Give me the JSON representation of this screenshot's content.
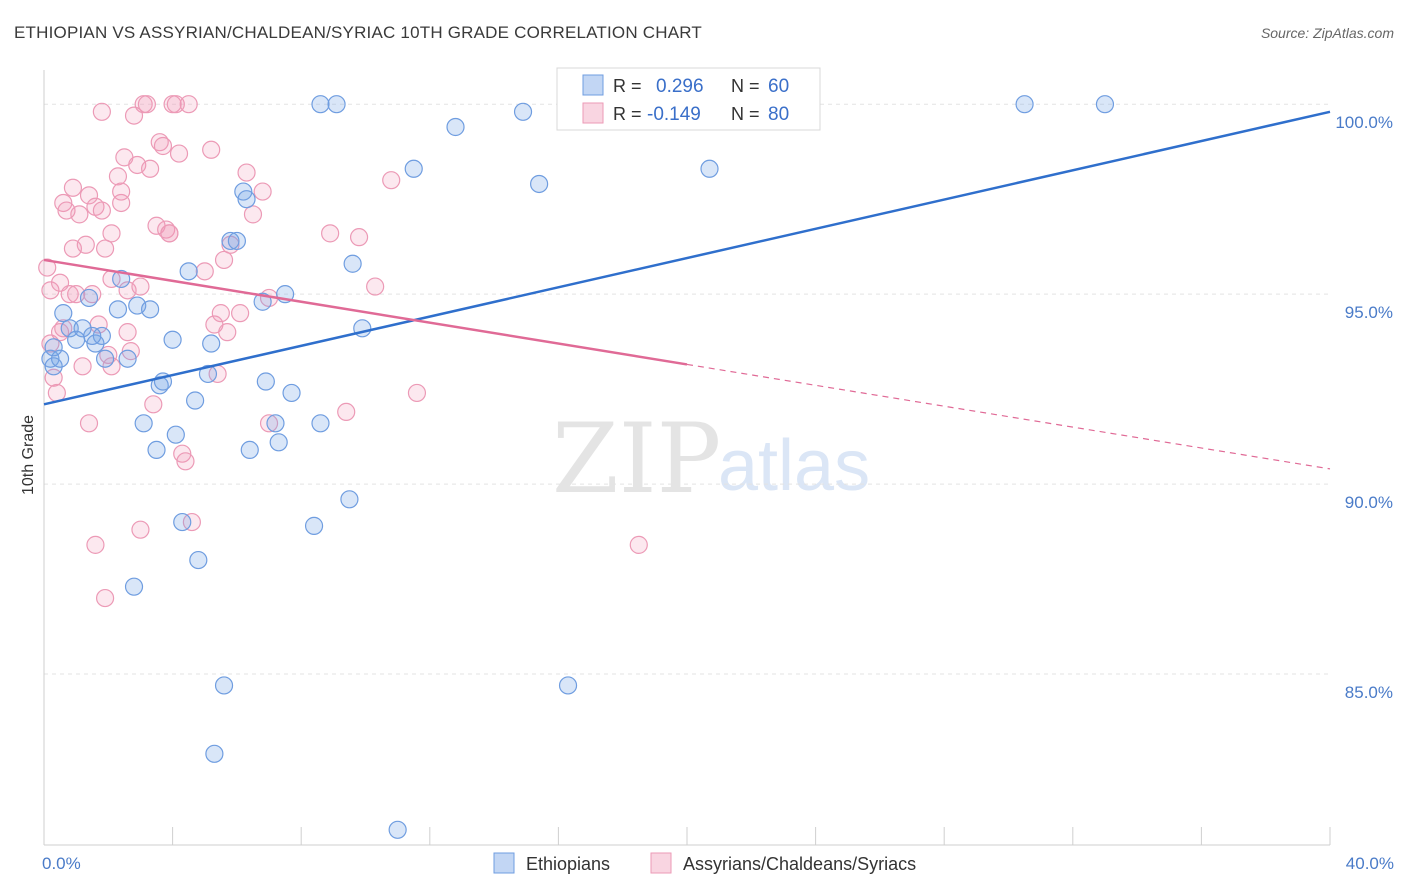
{
  "chart_data": {
    "type": "scatter",
    "title": "ETHIOPIAN VS ASSYRIAN/CHALDEAN/SYRIAC 10TH GRADE CORRELATION CHART",
    "source": "Source: ZipAtlas.com",
    "ylabel": "10th Grade",
    "xlim": [
      0,
      40
    ],
    "ylim": [
      80.5,
      100.9
    ],
    "x_tick_labels": [
      {
        "value": 0,
        "label": "0.0%"
      },
      {
        "value": 40,
        "label": "40.0%"
      }
    ],
    "y_tick_labels": [
      {
        "value": 100,
        "label": "100.0%"
      },
      {
        "value": 95,
        "label": "95.0%"
      },
      {
        "value": 90,
        "label": "90.0%"
      },
      {
        "value": 85,
        "label": "85.0%"
      }
    ],
    "grid": true,
    "legend_position": "top-center",
    "watermark": {
      "zip": "ZIP",
      "atlas": "atlas"
    },
    "stats": [
      {
        "r_label": "R =",
        "r_value": "0.296",
        "n_label": "N =",
        "n_value": "60"
      },
      {
        "r_label": "R =",
        "r_value": "-0.149",
        "n_label": "N =",
        "n_value": "80"
      }
    ],
    "series": [
      {
        "name": "Ethiopians",
        "color": "#6f9de0",
        "line_color": "#2f6fcc",
        "trend": {
          "x": [
            0,
            40
          ],
          "y": [
            92.1,
            99.8
          ],
          "dashed_from": null
        },
        "points": [
          [
            0.2,
            93.3
          ],
          [
            0.3,
            93.1
          ],
          [
            0.5,
            93.3
          ],
          [
            0.6,
            94.5
          ],
          [
            0.8,
            94.1
          ],
          [
            1.0,
            93.8
          ],
          [
            1.2,
            94.1
          ],
          [
            1.4,
            94.9
          ],
          [
            1.6,
            93.7
          ],
          [
            1.8,
            93.9
          ],
          [
            1.9,
            93.3
          ],
          [
            2.3,
            94.6
          ],
          [
            2.4,
            95.4
          ],
          [
            2.6,
            93.3
          ],
          [
            2.8,
            87.3
          ],
          [
            2.9,
            94.7
          ],
          [
            3.1,
            91.6
          ],
          [
            3.3,
            94.6
          ],
          [
            3.5,
            90.9
          ],
          [
            3.6,
            92.6
          ],
          [
            3.7,
            92.7
          ],
          [
            4.0,
            93.8
          ],
          [
            4.1,
            91.3
          ],
          [
            4.3,
            89.0
          ],
          [
            4.5,
            95.6
          ],
          [
            4.7,
            92.2
          ],
          [
            4.8,
            88.0
          ],
          [
            5.1,
            92.9
          ],
          [
            5.2,
            93.7
          ],
          [
            5.3,
            82.9
          ],
          [
            5.6,
            84.7
          ],
          [
            5.8,
            96.4
          ],
          [
            6.0,
            96.4
          ],
          [
            6.2,
            97.7
          ],
          [
            6.3,
            97.5
          ],
          [
            6.4,
            90.9
          ],
          [
            6.8,
            94.8
          ],
          [
            6.9,
            92.7
          ],
          [
            7.2,
            91.6
          ],
          [
            7.3,
            91.1
          ],
          [
            7.5,
            95.0
          ],
          [
            7.7,
            92.4
          ],
          [
            8.4,
            88.9
          ],
          [
            8.6,
            91.6
          ],
          [
            8.6,
            100.0
          ],
          [
            9.1,
            100.0
          ],
          [
            9.5,
            89.6
          ],
          [
            9.6,
            95.8
          ],
          [
            9.9,
            94.1
          ],
          [
            11.0,
            80.9
          ],
          [
            11.5,
            98.3
          ],
          [
            12.8,
            99.4
          ],
          [
            14.9,
            99.8
          ],
          [
            15.4,
            97.9
          ],
          [
            16.3,
            84.7
          ],
          [
            20.7,
            98.3
          ],
          [
            30.5,
            100.0
          ],
          [
            33.0,
            100.0
          ],
          [
            0.3,
            93.6
          ],
          [
            1.5,
            93.9
          ]
        ]
      },
      {
        "name": "Assyrians/Chaldeans/Syriacs",
        "color": "#ec9ab6",
        "line_color": "#e06a96",
        "trend": {
          "x": [
            0,
            40
          ],
          "y": [
            95.9,
            90.4
          ],
          "dashed_from": 20
        },
        "points": [
          [
            0.1,
            95.7
          ],
          [
            0.2,
            95.1
          ],
          [
            0.2,
            93.7
          ],
          [
            0.3,
            92.8
          ],
          [
            0.4,
            92.4
          ],
          [
            0.5,
            94.0
          ],
          [
            0.5,
            95.3
          ],
          [
            0.6,
            97.4
          ],
          [
            0.7,
            97.2
          ],
          [
            0.8,
            95.0
          ],
          [
            0.9,
            97.8
          ],
          [
            0.9,
            96.2
          ],
          [
            1.0,
            95.0
          ],
          [
            1.1,
            97.1
          ],
          [
            1.2,
            93.1
          ],
          [
            1.3,
            96.3
          ],
          [
            1.4,
            97.6
          ],
          [
            1.4,
            91.6
          ],
          [
            1.5,
            95.0
          ],
          [
            1.6,
            97.3
          ],
          [
            1.6,
            88.4
          ],
          [
            1.7,
            94.2
          ],
          [
            1.8,
            97.2
          ],
          [
            1.8,
            99.8
          ],
          [
            1.9,
            96.2
          ],
          [
            1.9,
            87.0
          ],
          [
            2.0,
            93.4
          ],
          [
            2.1,
            96.6
          ],
          [
            2.1,
            95.4
          ],
          [
            2.3,
            98.1
          ],
          [
            2.4,
            97.4
          ],
          [
            2.4,
            97.7
          ],
          [
            2.5,
            98.6
          ],
          [
            2.6,
            94.0
          ],
          [
            2.6,
            95.1
          ],
          [
            2.7,
            93.5
          ],
          [
            2.8,
            99.7
          ],
          [
            2.9,
            98.4
          ],
          [
            3.0,
            95.2
          ],
          [
            3.0,
            88.8
          ],
          [
            3.1,
            100.0
          ],
          [
            3.2,
            100.0
          ],
          [
            3.3,
            98.3
          ],
          [
            3.4,
            92.1
          ],
          [
            3.5,
            96.8
          ],
          [
            3.6,
            99.0
          ],
          [
            3.7,
            98.9
          ],
          [
            3.8,
            96.7
          ],
          [
            3.9,
            96.6
          ],
          [
            4.0,
            100.0
          ],
          [
            4.1,
            100.0
          ],
          [
            4.2,
            98.7
          ],
          [
            4.3,
            90.8
          ],
          [
            4.4,
            90.6
          ],
          [
            4.5,
            100.0
          ],
          [
            4.6,
            89.0
          ],
          [
            5.0,
            95.6
          ],
          [
            5.2,
            98.8
          ],
          [
            5.3,
            94.2
          ],
          [
            5.4,
            92.9
          ],
          [
            5.5,
            94.5
          ],
          [
            5.6,
            95.9
          ],
          [
            5.7,
            94.0
          ],
          [
            5.8,
            96.3
          ],
          [
            6.1,
            94.5
          ],
          [
            6.3,
            98.2
          ],
          [
            6.5,
            97.1
          ],
          [
            6.8,
            97.7
          ],
          [
            7.0,
            91.6
          ],
          [
            8.9,
            96.6
          ],
          [
            9.4,
            91.9
          ],
          [
            9.8,
            96.5
          ],
          [
            10.3,
            95.2
          ],
          [
            10.8,
            98.0
          ],
          [
            11.6,
            92.4
          ],
          [
            18.5,
            88.4
          ],
          [
            0.6,
            94.1
          ],
          [
            3.9,
            96.6
          ],
          [
            7.0,
            94.9
          ],
          [
            2.1,
            93.1
          ]
        ]
      }
    ]
  }
}
